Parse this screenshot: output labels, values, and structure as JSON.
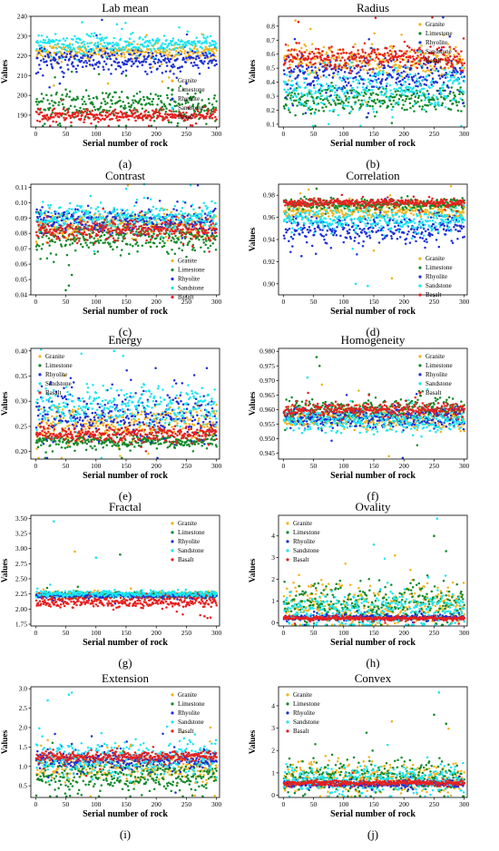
{
  "series_colors": {
    "Granite": "#f2b31c",
    "Limestone": "#138a2a",
    "Rhyolite": "#1c2fd6",
    "Sandstone": "#1ce6f2",
    "Basalt": "#e8201f"
  },
  "chart_data": [
    {
      "type": "scatter",
      "letter": "(a)",
      "title": "Lab mean",
      "xlabel": "Serial number of rock",
      "ylabel": "Values",
      "xlim": [
        -8,
        305
      ],
      "ylim": [
        184,
        240
      ],
      "xticks": [
        0,
        50,
        100,
        150,
        200,
        250,
        300
      ],
      "yticks": [
        190,
        200,
        210,
        220,
        230,
        240
      ],
      "ytick_labels": [
        "190",
        "200",
        "210",
        "220",
        "230",
        "240"
      ],
      "legend": "right",
      "legend_y": 0.55,
      "series": [
        {
          "name": "Granite",
          "center": 222,
          "spread": 3.5,
          "outliers": [
            [
              30,
              205
            ],
            [
              120,
              206
            ],
            [
              210,
              207
            ]
          ]
        },
        {
          "name": "Limestone",
          "center": 195,
          "spread": 6.5,
          "outliers": [
            [
              60,
              212
            ],
            [
              150,
              210
            ]
          ]
        },
        {
          "name": "Rhyolite",
          "center": 218,
          "spread": 5,
          "outliers": [
            [
              40,
              206
            ],
            [
              250,
              206
            ]
          ]
        },
        {
          "name": "Sandstone",
          "center": 226,
          "spread": 4,
          "outliers": [
            [
              77,
              237
            ],
            [
              135,
              236
            ]
          ]
        },
        {
          "name": "Basalt",
          "center": 190,
          "spread": 2.5,
          "outliers": []
        }
      ]
    },
    {
      "type": "scatter",
      "letter": "(b)",
      "title": "Radius",
      "xlabel": "Serial number of rock",
      "ylabel": "Values",
      "xlim": [
        -8,
        305
      ],
      "ylim": [
        0.08,
        0.87
      ],
      "xticks": [
        0,
        50,
        100,
        150,
        200,
        250,
        300
      ],
      "yticks": [
        0.1,
        0.2,
        0.3,
        0.4,
        0.5,
        0.6,
        0.7,
        0.8
      ],
      "ytick_labels": [
        "0.1",
        "0.2",
        "0.3",
        "0.4",
        "0.5",
        "0.6",
        "0.7",
        "0.8"
      ],
      "legend": "top-right",
      "legend_y": 0.04,
      "series": [
        {
          "name": "Granite",
          "center": 0.55,
          "spread": 0.09,
          "outliers": [
            [
              20,
              0.84
            ],
            [
              45,
              0.78
            ]
          ]
        },
        {
          "name": "Limestone",
          "center": 0.28,
          "spread": 0.08,
          "outliers": []
        },
        {
          "name": "Rhyolite",
          "center": 0.45,
          "spread": 0.12,
          "outliers": []
        },
        {
          "name": "Sandstone",
          "center": 0.35,
          "spread": 0.14,
          "outliers": []
        },
        {
          "name": "Basalt",
          "center": 0.58,
          "spread": 0.07,
          "outliers": [
            [
              25,
              0.83
            ]
          ]
        }
      ]
    },
    {
      "type": "scatter",
      "letter": "(c)",
      "title": "Contrast",
      "xlabel": "Serial number of rock",
      "ylabel": "",
      "xlim": [
        -8,
        305
      ],
      "ylim": [
        0.04,
        0.112
      ],
      "xticks": [
        0,
        50,
        100,
        150,
        200,
        250,
        300
      ],
      "yticks": [
        0.04,
        0.05,
        0.06,
        0.07,
        0.08,
        0.09,
        0.1,
        0.11
      ],
      "ytick_labels": [
        "0.04",
        "0.05",
        "0.06",
        "0.07",
        "0.08",
        "0.09",
        "0.10",
        "0.11"
      ],
      "legend": "bottom-right",
      "legend_y": 0.66,
      "series": [
        {
          "name": "Granite",
          "center": 0.085,
          "spread": 0.007,
          "outliers": []
        },
        {
          "name": "Limestone",
          "center": 0.077,
          "spread": 0.007,
          "outliers": [
            [
              55,
              0.046
            ],
            [
              50,
              0.043
            ],
            [
              60,
              0.053
            ]
          ]
        },
        {
          "name": "Rhyolite",
          "center": 0.088,
          "spread": 0.006,
          "outliers": []
        },
        {
          "name": "Sandstone",
          "center": 0.09,
          "spread": 0.007,
          "outliers": [
            [
              150,
              0.109
            ],
            [
              180,
              0.112
            ]
          ]
        },
        {
          "name": "Basalt",
          "center": 0.082,
          "spread": 0.005,
          "outliers": []
        }
      ]
    },
    {
      "type": "scatter",
      "letter": "(d)",
      "title": "Correlation",
      "xlabel": "Serial number of rock",
      "ylabel": "Values",
      "xlim": [
        -8,
        305
      ],
      "ylim": [
        0.89,
        0.99
      ],
      "xticks": [
        0,
        50,
        100,
        150,
        200,
        250,
        300
      ],
      "yticks": [
        0.9,
        0.92,
        0.94,
        0.96,
        0.98
      ],
      "ytick_labels": [
        "0.90",
        "0.92",
        "0.94",
        "0.96",
        "0.98"
      ],
      "legend": "bottom-right",
      "legend_y": 0.64,
      "series": [
        {
          "name": "Granite",
          "center": 0.966,
          "spread": 0.006,
          "outliers": [
            [
              180,
              0.905
            ],
            [
              150,
              0.93
            ]
          ]
        },
        {
          "name": "Limestone",
          "center": 0.972,
          "spread": 0.004,
          "outliers": [
            [
              55,
              0.986
            ]
          ]
        },
        {
          "name": "Rhyolite",
          "center": 0.95,
          "spread": 0.011,
          "outliers": [
            [
              30,
              0.925
            ]
          ]
        },
        {
          "name": "Sandstone",
          "center": 0.958,
          "spread": 0.009,
          "outliers": [
            [
              120,
              0.9
            ],
            [
              140,
              0.898
            ]
          ]
        },
        {
          "name": "Basalt",
          "center": 0.973,
          "spread": 0.003,
          "outliers": []
        }
      ]
    },
    {
      "type": "scatter",
      "letter": "(e)",
      "title": "Energy",
      "xlabel": "Serial number of rock",
      "ylabel": "Values",
      "xlim": [
        -8,
        305
      ],
      "ylim": [
        0.185,
        0.405
      ],
      "xticks": [
        0,
        50,
        100,
        150,
        200,
        250,
        300
      ],
      "yticks": [
        0.2,
        0.25,
        0.3,
        0.35,
        0.4
      ],
      "ytick_labels": [
        "0.20",
        "0.25",
        "0.30",
        "0.35",
        "0.40"
      ],
      "legend": "top-left",
      "legend_y": 0.04,
      "series": [
        {
          "name": "Granite",
          "center": 0.255,
          "spread": 0.03,
          "outliers": []
        },
        {
          "name": "Limestone",
          "center": 0.22,
          "spread": 0.012,
          "outliers": []
        },
        {
          "name": "Rhyolite",
          "center": 0.27,
          "spread": 0.04,
          "outliers": []
        },
        {
          "name": "Sandstone",
          "center": 0.29,
          "spread": 0.035,
          "outliers": [
            [
              130,
              0.4
            ],
            [
              145,
              0.39
            ]
          ]
        },
        {
          "name": "Basalt",
          "center": 0.235,
          "spread": 0.012,
          "outliers": []
        }
      ]
    },
    {
      "type": "scatter",
      "letter": "(f)",
      "title": "Homogeneity",
      "xlabel": "Serial number of rock",
      "ylabel": "Values",
      "xlim": [
        -8,
        305
      ],
      "ylim": [
        0.943,
        0.981
      ],
      "xticks": [
        0,
        50,
        100,
        150,
        200,
        250,
        300
      ],
      "yticks": [
        0.945,
        0.95,
        0.955,
        0.96,
        0.965,
        0.97,
        0.975,
        0.98
      ],
      "ytick_labels": [
        "0.945",
        "0.950",
        "0.955",
        "0.960",
        "0.965",
        "0.970",
        "0.975",
        "0.980"
      ],
      "legend": "top-right",
      "legend_y": 0.04,
      "series": [
        {
          "name": "Granite",
          "center": 0.957,
          "spread": 0.003,
          "outliers": [
            [
              175,
              0.944
            ]
          ]
        },
        {
          "name": "Limestone",
          "center": 0.96,
          "spread": 0.003,
          "outliers": [
            [
              55,
              0.978
            ],
            [
              60,
              0.975
            ]
          ]
        },
        {
          "name": "Rhyolite",
          "center": 0.957,
          "spread": 0.003,
          "outliers": []
        },
        {
          "name": "Sandstone",
          "center": 0.956,
          "spread": 0.003,
          "outliers": [
            [
              40,
              0.971
            ]
          ]
        },
        {
          "name": "Basalt",
          "center": 0.96,
          "spread": 0.002,
          "outliers": []
        }
      ]
    },
    {
      "type": "scatter",
      "letter": "(g)",
      "title": "Fractal",
      "xlabel": "Serial number of rock",
      "ylabel": "Values",
      "xlim": [
        -8,
        305
      ],
      "ylim": [
        1.72,
        3.55
      ],
      "xticks": [
        0,
        50,
        100,
        150,
        200,
        250,
        300
      ],
      "yticks": [
        1.75,
        2.0,
        2.25,
        2.5,
        2.75,
        3.0,
        3.25,
        3.5
      ],
      "ytick_labels": [
        "1.75",
        "2.00",
        "2.25",
        "2.50",
        "2.75",
        "3.00",
        "3.25",
        "3.50"
      ],
      "legend": "top-right",
      "legend_y": 0.04,
      "series": [
        {
          "name": "Granite",
          "center": 2.24,
          "spread": 0.03,
          "outliers": [
            [
              65,
              2.95
            ]
          ]
        },
        {
          "name": "Limestone",
          "center": 2.23,
          "spread": 0.04,
          "outliers": [
            [
              140,
              2.9
            ]
          ]
        },
        {
          "name": "Rhyolite",
          "center": 2.22,
          "spread": 0.03,
          "outliers": []
        },
        {
          "name": "Sandstone",
          "center": 2.25,
          "spread": 0.04,
          "outliers": [
            [
              30,
              3.45
            ],
            [
              100,
              2.85
            ]
          ]
        },
        {
          "name": "Basalt",
          "center": 2.12,
          "spread": 0.08,
          "outliers": [
            [
              280,
              1.88
            ],
            [
              290,
              1.86
            ]
          ]
        }
      ]
    },
    {
      "type": "scatter",
      "letter": "(h)",
      "title": "Ovality",
      "xlabel": "Serial number of rock",
      "ylabel": "Values",
      "xlim": [
        -8,
        305
      ],
      "ylim": [
        -0.15,
        4.95
      ],
      "xticks": [
        0,
        50,
        100,
        150,
        200,
        250,
        300
      ],
      "yticks": [
        0,
        1,
        2,
        3,
        4
      ],
      "ytick_labels": [
        "0",
        "1",
        "2",
        "3",
        "4"
      ],
      "legend": "top-left",
      "legend_y": 0.04,
      "series": [
        {
          "name": "Granite",
          "center": 0.8,
          "spread": 0.8,
          "outliers": [
            [
              185,
              3.1
            ]
          ]
        },
        {
          "name": "Limestone",
          "center": 0.9,
          "spread": 0.8,
          "outliers": [
            [
              250,
              4.0
            ],
            [
              270,
              3.3
            ]
          ]
        },
        {
          "name": "Rhyolite",
          "center": 0.25,
          "spread": 0.12,
          "outliers": []
        },
        {
          "name": "Sandstone",
          "center": 0.6,
          "spread": 0.7,
          "outliers": [
            [
              255,
              4.8
            ],
            [
              150,
              3.6
            ]
          ]
        },
        {
          "name": "Basalt",
          "center": 0.2,
          "spread": 0.08,
          "outliers": []
        }
      ]
    },
    {
      "type": "scatter",
      "letter": "(i)",
      "title": "Extension",
      "xlabel": "Serial number of rock",
      "ylabel": "Values",
      "xlim": [
        -8,
        305
      ],
      "ylim": [
        0.2,
        3.05
      ],
      "xticks": [
        0,
        50,
        100,
        150,
        200,
        250,
        300
      ],
      "yticks": [
        0.5,
        1.0,
        1.5,
        2.0,
        2.5,
        3.0
      ],
      "ytick_labels": [
        "0.5",
        "1.0",
        "1.5",
        "2.0",
        "2.5",
        "3.0"
      ],
      "legend": "top-right",
      "legend_y": 0.04,
      "series": [
        {
          "name": "Granite",
          "center": 1.0,
          "spread": 0.3,
          "outliers": [
            [
              290,
              2.0
            ]
          ]
        },
        {
          "name": "Limestone",
          "center": 0.7,
          "spread": 0.3,
          "outliers": []
        },
        {
          "name": "Rhyolite",
          "center": 1.15,
          "spread": 0.2,
          "outliers": []
        },
        {
          "name": "Sandstone",
          "center": 1.2,
          "spread": 0.4,
          "outliers": [
            [
              20,
              2.7
            ],
            [
              55,
              2.85
            ],
            [
              60,
              2.9
            ]
          ]
        },
        {
          "name": "Basalt",
          "center": 1.25,
          "spread": 0.12,
          "outliers": []
        }
      ]
    },
    {
      "type": "scatter",
      "letter": "(j)",
      "title": "Convex",
      "xlabel": "Serial number of rock",
      "ylabel": "Values",
      "xlim": [
        -8,
        305
      ],
      "ylim": [
        -0.1,
        4.85
      ],
      "xticks": [
        0,
        50,
        100,
        150,
        200,
        250,
        300
      ],
      "yticks": [
        0,
        1,
        2,
        3,
        4
      ],
      "ytick_labels": [
        "0",
        "1",
        "2",
        "3",
        "4"
      ],
      "legend": "top-left",
      "legend_y": 0.04,
      "series": [
        {
          "name": "Granite",
          "center": 0.75,
          "spread": 0.6,
          "outliers": [
            [
              180,
              3.3
            ]
          ]
        },
        {
          "name": "Limestone",
          "center": 0.8,
          "spread": 0.6,
          "outliers": [
            [
              250,
              3.6
            ],
            [
              270,
              3.2
            ]
          ]
        },
        {
          "name": "Rhyolite",
          "center": 0.5,
          "spread": 0.12,
          "outliers": []
        },
        {
          "name": "Sandstone",
          "center": 0.7,
          "spread": 0.5,
          "outliers": [
            [
              258,
              4.6
            ]
          ]
        },
        {
          "name": "Basalt",
          "center": 0.55,
          "spread": 0.1,
          "outliers": []
        }
      ]
    }
  ]
}
